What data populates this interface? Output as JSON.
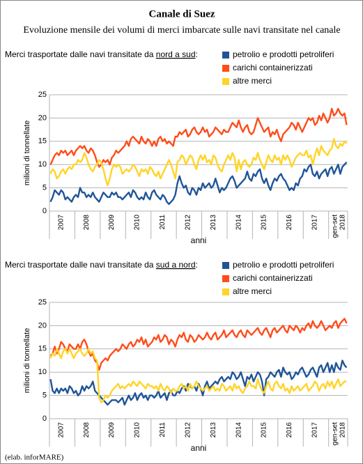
{
  "title": "Canale di Suez",
  "subtitle": "Evoluzione mensile dei volumi di merci imbarcate sulle navi transitate nel canale",
  "credit": "(elab. inforMARE)",
  "chart_data": [
    {
      "type": "line",
      "heading": [
        "Merci trasportate dalle navi transitate da ",
        "nord a sud",
        ":"
      ],
      "y_label": "milioni di tonnellate",
      "x_label": "anni",
      "ylim": [
        0,
        25
      ],
      "yticks": [
        0,
        5,
        10,
        15,
        20,
        25
      ],
      "grid": true,
      "categories": [
        null,
        null,
        null,
        null,
        null,
        "2007",
        null,
        null,
        null,
        null,
        null,
        null,
        null,
        null,
        null,
        null,
        null,
        "2008",
        null,
        null,
        null,
        null,
        null,
        null,
        null,
        null,
        null,
        null,
        null,
        "2009",
        null,
        null,
        null,
        null,
        null,
        null,
        null,
        null,
        null,
        null,
        null,
        "2010",
        null,
        null,
        null,
        null,
        null,
        null,
        null,
        null,
        null,
        null,
        null,
        "2011",
        null,
        null,
        null,
        null,
        null,
        null,
        null,
        null,
        null,
        null,
        null,
        "2012",
        null,
        null,
        null,
        null,
        null,
        null,
        null,
        null,
        null,
        null,
        null,
        "2013",
        null,
        null,
        null,
        null,
        null,
        null,
        null,
        null,
        null,
        null,
        null,
        "2014",
        null,
        null,
        null,
        null,
        null,
        null,
        null,
        null,
        null,
        null,
        null,
        "2015",
        null,
        null,
        null,
        null,
        null,
        null,
        null,
        null,
        null,
        null,
        null,
        "2016",
        null,
        null,
        null,
        null,
        null,
        null,
        null,
        null,
        null,
        null,
        null,
        "2017",
        null,
        null,
        null,
        null,
        null,
        null,
        null,
        null,
        null,
        null,
        "gen-set 2018",
        null,
        null,
        null,
        null
      ],
      "series": [
        {
          "name": "petrolio e prodotti petroliferi",
          "color": "#1f5597",
          "values": [
            2,
            3,
            4.5,
            4,
            3.5,
            4.5,
            4,
            2.5,
            3,
            2.5,
            2,
            3,
            3.5,
            3,
            5,
            4,
            4,
            3,
            3.5,
            3,
            4,
            3,
            2.5,
            2,
            3,
            4,
            3.5,
            3,
            3,
            4,
            3.5,
            4,
            3,
            3,
            2.5,
            3,
            3.5,
            4,
            3,
            4.5,
            4,
            3,
            2.5,
            3,
            2.5,
            4,
            3,
            2.5,
            4,
            4.5,
            3.5,
            3,
            2.5,
            3.5,
            3,
            2,
            1.5,
            2,
            2.5,
            3.5,
            6,
            7.5,
            6,
            5,
            5.5,
            4,
            3.5,
            5,
            4.5,
            3.5,
            5,
            4.5,
            6,
            5,
            5.5,
            6,
            5,
            5.5,
            7,
            5.5,
            4,
            5,
            4.5,
            5,
            6,
            7,
            7.5,
            6.5,
            5,
            5.5,
            6,
            6.5,
            7,
            8.5,
            7,
            6.5,
            8,
            7.5,
            8.5,
            9,
            7,
            6,
            7,
            5.5,
            4.5,
            6,
            7,
            6.5,
            7.5,
            8,
            7,
            6.5,
            5.5,
            4.5,
            5,
            4.5,
            6,
            5.5,
            7,
            7.5,
            9,
            8.5,
            9.5,
            10,
            8,
            7.5,
            8.5,
            7,
            8,
            8.5,
            9,
            7.5,
            9,
            9.5,
            8,
            9,
            10,
            8,
            9.5,
            10,
            10.5
          ]
        },
        {
          "name": "carichi containerizzati",
          "color": "#ff4c1a",
          "values": [
            10,
            11,
            12,
            12.5,
            12,
            13,
            12.5,
            13,
            12,
            12.5,
            13,
            12,
            13,
            13.5,
            14,
            13.5,
            14,
            13,
            12.5,
            13.5,
            13,
            12,
            10.5,
            9.5,
            10,
            11,
            10.5,
            11,
            10,
            11.5,
            12,
            13,
            12.5,
            13,
            13.5,
            14,
            15,
            14,
            15.5,
            16,
            15.5,
            15,
            14.5,
            16,
            15,
            14.5,
            15.5,
            15,
            14,
            15,
            14,
            15.5,
            16,
            15,
            15.5,
            14.5,
            15,
            14.5,
            14,
            16,
            16,
            17,
            16.5,
            17,
            17.5,
            16,
            16.5,
            17.5,
            18,
            17,
            16.5,
            17,
            18,
            17,
            17.5,
            16,
            16.5,
            17,
            18,
            17.5,
            17,
            16.5,
            17.5,
            17,
            17,
            18,
            19,
            18.5,
            18,
            19.5,
            18,
            17,
            18,
            18.5,
            17,
            16.5,
            17,
            18.5,
            20,
            19,
            18,
            17,
            17.5,
            18,
            16,
            17,
            16.5,
            17.5,
            16,
            15,
            16.5,
            17,
            17.5,
            18,
            19,
            18.5,
            17.5,
            19,
            18,
            17,
            18,
            19,
            20,
            19.5,
            20,
            18.5,
            19,
            20.5,
            19.5,
            21,
            20,
            19,
            20,
            22,
            20.5,
            21,
            22,
            21,
            20.5,
            21,
            18.5
          ]
        },
        {
          "name": "altre merci",
          "color": "#ffd428",
          "values": [
            8,
            9,
            8.5,
            7,
            7.5,
            8.5,
            9,
            8,
            9,
            9.5,
            9,
            10,
            10,
            11,
            10.5,
            11,
            12.5,
            11.5,
            10,
            9,
            8.5,
            9.5,
            10,
            11,
            10.5,
            9,
            7,
            5.5,
            7,
            9,
            10,
            9.5,
            10,
            9.5,
            8,
            8.5,
            9,
            8.5,
            9,
            10,
            9.5,
            8.5,
            7.5,
            9,
            8.5,
            9,
            8,
            9.5,
            9,
            8,
            7.5,
            8.5,
            7,
            8,
            9,
            10,
            11,
            10,
            8.5,
            7,
            10.5,
            11,
            12,
            11.5,
            10,
            11,
            12,
            11.5,
            10,
            9,
            11,
            12,
            11,
            12,
            10.5,
            11,
            10,
            12,
            11.5,
            10,
            9,
            8.5,
            10,
            11,
            12,
            11,
            12.5,
            11.5,
            8.5,
            11,
            9,
            10.5,
            11,
            10,
            9.5,
            10,
            11.5,
            11,
            12.5,
            11,
            10,
            9,
            10.5,
            12,
            11,
            10.5,
            12,
            11,
            11.5,
            10,
            12,
            11,
            12,
            11,
            9.5,
            10.5,
            11.5,
            12,
            12.5,
            12,
            12,
            13,
            11.5,
            12,
            10,
            12,
            13.5,
            12,
            14,
            13,
            12.5,
            12,
            13,
            13.5,
            15.5,
            14,
            13.5,
            14.5,
            14,
            15,
            14.5
          ]
        }
      ]
    },
    {
      "type": "line",
      "heading": [
        "Merci trasportate dalle navi transitate da ",
        "sud a nord",
        ":"
      ],
      "y_label": "milioni di tonnellate",
      "x_label": "anni",
      "ylim": [
        0,
        25
      ],
      "yticks": [
        0,
        5,
        10,
        15,
        20,
        25
      ],
      "grid": true,
      "categories": [
        null,
        null,
        null,
        null,
        null,
        "2007",
        null,
        null,
        null,
        null,
        null,
        null,
        null,
        null,
        null,
        null,
        null,
        "2008",
        null,
        null,
        null,
        null,
        null,
        null,
        null,
        null,
        null,
        null,
        null,
        "2009",
        null,
        null,
        null,
        null,
        null,
        null,
        null,
        null,
        null,
        null,
        null,
        "2010",
        null,
        null,
        null,
        null,
        null,
        null,
        null,
        null,
        null,
        null,
        null,
        "2011",
        null,
        null,
        null,
        null,
        null,
        null,
        null,
        null,
        null,
        null,
        null,
        "2012",
        null,
        null,
        null,
        null,
        null,
        null,
        null,
        null,
        null,
        null,
        null,
        "2013",
        null,
        null,
        null,
        null,
        null,
        null,
        null,
        null,
        null,
        null,
        null,
        "2014",
        null,
        null,
        null,
        null,
        null,
        null,
        null,
        null,
        null,
        null,
        null,
        "2015",
        null,
        null,
        null,
        null,
        null,
        null,
        null,
        null,
        null,
        null,
        null,
        "2016",
        null,
        null,
        null,
        null,
        null,
        null,
        null,
        null,
        null,
        null,
        null,
        "2017",
        null,
        null,
        null,
        null,
        null,
        null,
        null,
        null,
        null,
        null,
        "gen-set 2018",
        null,
        null,
        null,
        null
      ],
      "series": [
        {
          "name": "petrolio e prodotti petroliferi",
          "color": "#1f5597",
          "values": [
            8.5,
            6,
            5.5,
            6.5,
            5.5,
            6.5,
            6,
            6.5,
            5.5,
            7,
            6.5,
            5.5,
            6,
            5,
            5.5,
            7,
            6,
            7,
            6.5,
            7,
            8,
            6,
            5.5,
            5,
            4.5,
            4,
            3.5,
            3,
            3.5,
            4,
            4,
            4,
            3.5,
            4,
            4.5,
            3,
            4,
            5,
            4,
            4.5,
            5.5,
            4,
            5,
            5.5,
            4.5,
            5,
            4,
            5,
            5,
            4.5,
            5,
            6,
            4.5,
            5,
            5.5,
            4,
            5.5,
            6,
            5,
            5,
            6,
            5.5,
            6.5,
            7,
            6,
            7.5,
            7,
            6.5,
            7,
            6,
            7.5,
            6.5,
            5,
            7,
            8,
            6.5,
            7,
            7.5,
            8,
            7.5,
            8.5,
            9,
            8,
            8.5,
            9,
            8.5,
            10,
            9.5,
            8.5,
            9,
            10,
            8.5,
            7,
            9,
            8.5,
            9.5,
            8,
            9,
            10,
            9.5,
            8,
            5,
            8.5,
            9,
            10,
            9.5,
            9,
            10,
            10.5,
            9,
            11,
            10,
            9.5,
            10,
            8.5,
            9,
            10,
            9.5,
            10.5,
            11,
            10,
            9,
            9.5,
            10.5,
            11,
            10,
            9,
            11,
            11.5,
            10,
            11,
            12,
            10,
            11.5,
            10,
            12,
            11,
            10.5,
            12.5,
            11.5,
            11
          ]
        },
        {
          "name": "carichi containerizzati",
          "color": "#ff4c1a",
          "values": [
            13.5,
            14,
            15.5,
            14,
            15,
            16.5,
            16,
            15,
            14.5,
            16,
            15.5,
            15,
            15,
            16,
            15,
            16.5,
            17,
            16,
            14.5,
            13.5,
            14,
            12.5,
            12,
            10.5,
            12,
            12.5,
            13,
            12.5,
            13.5,
            14,
            14.5,
            15,
            14.5,
            15,
            16,
            15.5,
            15,
            16,
            16.5,
            15.5,
            16,
            17,
            16.5,
            17.5,
            16,
            17,
            15.5,
            16,
            16.5,
            17.5,
            17,
            18,
            16.5,
            17,
            18,
            17.5,
            16,
            17,
            16.5,
            15.5,
            17,
            18,
            17.5,
            18.5,
            17,
            16.5,
            18,
            17.5,
            16.5,
            17,
            18,
            17.5,
            17,
            17.5,
            18.5,
            17.5,
            17,
            18,
            18.5,
            17,
            17.5,
            18,
            19,
            17.5,
            18,
            18.5,
            19,
            18,
            17.5,
            18.5,
            19,
            18,
            17.5,
            19,
            18.5,
            18,
            18.5,
            19,
            19.5,
            18.5,
            18,
            19,
            19.5,
            18.5,
            17.5,
            19,
            19.5,
            18.5,
            19,
            19.5,
            20,
            19,
            18.5,
            20,
            19.5,
            19,
            20,
            19.5,
            18.5,
            19.5,
            19,
            20,
            20.5,
            19.5,
            21,
            20,
            19.5,
            20,
            21,
            20,
            19,
            19.5,
            20,
            19.5,
            20.5,
            21,
            19.5,
            20.5,
            21,
            21.5,
            20.5
          ]
        },
        {
          "name": "altre merci",
          "color": "#ffd428",
          "values": [
            13,
            14,
            13.5,
            15,
            14,
            13,
            14.5,
            15,
            14,
            15,
            14,
            13,
            14,
            14.5,
            15,
            14,
            13.5,
            14,
            15,
            14,
            14.5,
            13,
            12.5,
            4.5,
            3.5,
            4,
            5,
            4.5,
            5,
            6,
            6.5,
            7,
            7.5,
            6.5,
            7,
            6.5,
            7,
            7.5,
            7,
            8,
            7.5,
            7,
            8,
            7.5,
            7,
            6.5,
            7.5,
            7,
            7,
            6.5,
            7,
            6,
            7.5,
            6.5,
            6,
            7,
            6.5,
            5.5,
            6.5,
            6,
            6,
            7,
            7.5,
            6.5,
            7,
            6,
            7.5,
            6.5,
            7,
            8,
            7,
            6.5,
            6,
            6.5,
            7,
            6,
            6.5,
            7,
            6,
            6.5,
            6,
            7.5,
            7,
            6,
            6.5,
            7,
            6,
            7.5,
            6.5,
            7,
            6,
            5.5,
            6.5,
            7,
            8,
            7,
            7,
            6.5,
            8.5,
            7,
            6,
            5.5,
            7,
            8,
            6.5,
            6,
            7.5,
            8,
            7,
            6.5,
            7.5,
            6,
            6.5,
            5.5,
            7,
            6,
            6.5,
            7,
            6,
            6.5,
            7,
            7.5,
            6,
            6.5,
            7,
            8,
            7.5,
            6,
            7,
            7.5,
            6.5,
            8,
            7,
            8,
            6.5,
            7.5,
            8.5,
            7,
            7.5,
            8,
            8
          ]
        }
      ]
    }
  ]
}
